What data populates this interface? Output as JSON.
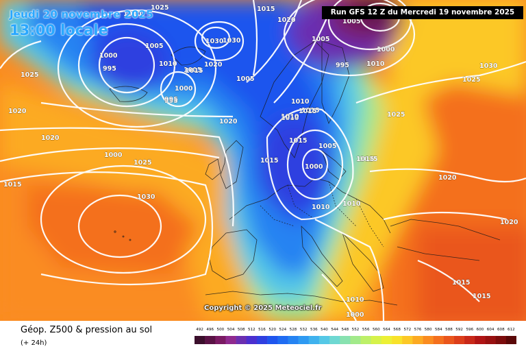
{
  "header": {
    "date_label": "Jeudi 20 novembre 2025",
    "time_label": "13:00 locale",
    "run_label": "Run GFS 12 Z du Mercredi 19 novembre 2025"
  },
  "footer": {
    "field_title": "Géop. Z500 & pression au sol",
    "lead_time": "(+ 24h)",
    "copyright": "Copyright © 2025 Meteociel.fr"
  },
  "legend": {
    "ticks": [
      "492",
      "496",
      "500",
      "504",
      "508",
      "512",
      "516",
      "520",
      "524",
      "528",
      "532",
      "536",
      "540",
      "544",
      "548",
      "552",
      "556",
      "560",
      "564",
      "568",
      "572",
      "576",
      "580",
      "584",
      "588",
      "592",
      "596",
      "600",
      "604",
      "608",
      "612"
    ],
    "colors": [
      "#3b0f2c",
      "#5a1245",
      "#7a1a63",
      "#8f2a8f",
      "#6b2fb0",
      "#4b2fcf",
      "#2f3fe0",
      "#1f55ee",
      "#1f6cf2",
      "#2583f2",
      "#2e9af2",
      "#3fb2ee",
      "#55c8e6",
      "#6ed8d2",
      "#88e2b0",
      "#a2ea8a",
      "#bdf068",
      "#d6f24a",
      "#ecf035",
      "#f8e22a",
      "#fcc826",
      "#fcaa22",
      "#fa8c20",
      "#f4701e",
      "#ea561c",
      "#dc3e1a",
      "#c82818",
      "#b01414",
      "#981010",
      "#7c0c0c",
      "#5a0808"
    ]
  },
  "isobar_labels": [
    "1015",
    "1020",
    "1005",
    "1025",
    "1030",
    "1000",
    "995",
    "1010",
    "1030",
    "1005",
    "1025",
    "1020",
    "1000",
    "995",
    "1010",
    "1005",
    "995",
    "1000",
    "1005",
    "1015",
    "1020",
    "1000",
    "1015",
    "1010",
    "1000",
    "995",
    "1005",
    "1015",
    "1020",
    "1020",
    "1025",
    "1015",
    "1015",
    "1030",
    "1005",
    "1010",
    "1010",
    "1010",
    "1010",
    "1025",
    "1015",
    "1015",
    "1030",
    "1020",
    "1025",
    "1020",
    "1015",
    "1015",
    "1015",
    "1010",
    "1010",
    "1000"
  ]
}
